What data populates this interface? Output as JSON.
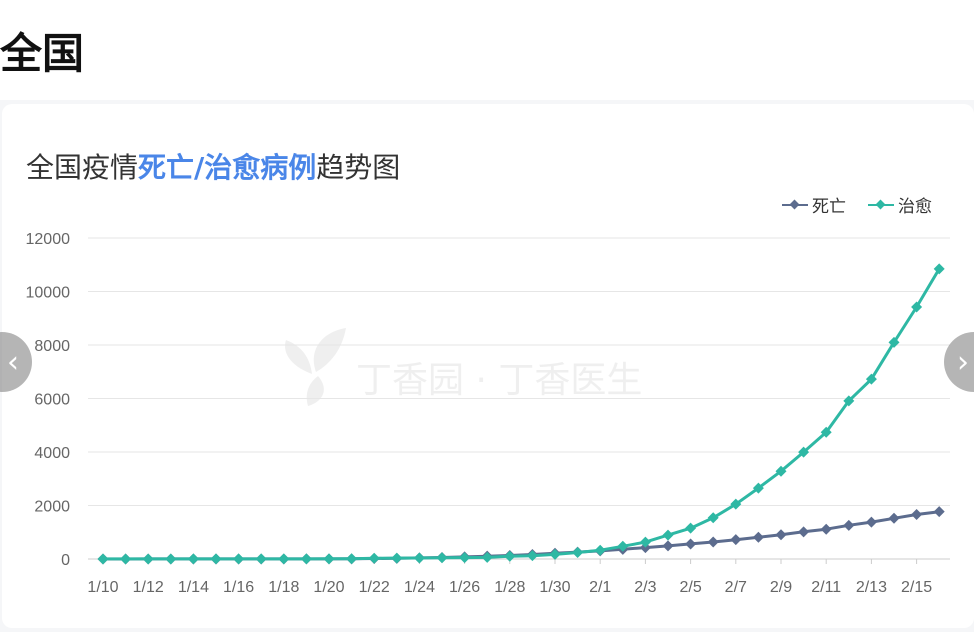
{
  "page": {
    "title": "全国"
  },
  "chart_card": {
    "title_prefix": "全国疫情",
    "title_highlight": "死亡/治愈病例",
    "title_suffix": "趋势图",
    "watermark": "丁香园 · 丁香医生"
  },
  "colors": {
    "death": "#5c6c8e",
    "cured": "#2eb8a4",
    "highlight": "#4a86e8"
  },
  "icons": {
    "prev": "chevron-left-icon",
    "next": "chevron-right-icon",
    "watermark_logo": "dxy-leaf-logo"
  },
  "chart_data": {
    "type": "line",
    "title": "全国疫情死亡/治愈病例趋势图",
    "categories": [
      "1/10",
      "1/11",
      "1/12",
      "1/13",
      "1/14",
      "1/15",
      "1/16",
      "1/17",
      "1/18",
      "1/19",
      "1/20",
      "1/21",
      "1/22",
      "1/23",
      "1/24",
      "1/25",
      "1/26",
      "1/27",
      "1/28",
      "1/29",
      "1/30",
      "1/31",
      "2/1",
      "2/2",
      "2/3",
      "2/4",
      "2/5",
      "2/6",
      "2/7",
      "2/8",
      "2/9",
      "2/10",
      "2/11",
      "2/12",
      "2/13",
      "2/14",
      "2/15",
      "2/16"
    ],
    "tick_labels": [
      "1/10",
      "1/12",
      "1/14",
      "1/16",
      "1/18",
      "1/20",
      "1/22",
      "1/24",
      "1/26",
      "1/28",
      "1/30",
      "2/1",
      "2/3",
      "2/5",
      "2/7",
      "2/9",
      "2/11",
      "2/13",
      "2/15"
    ],
    "series": [
      {
        "name": "死亡",
        "color": "#5c6c8e",
        "values": [
          1,
          1,
          2,
          2,
          2,
          2,
          2,
          2,
          2,
          3,
          4,
          6,
          17,
          25,
          41,
          56,
          80,
          106,
          132,
          170,
          213,
          259,
          304,
          361,
          425,
          490,
          563,
          636,
          722,
          811,
          908,
          1016,
          1113,
          1259,
          1380,
          1523,
          1665,
          1770
        ]
      },
      {
        "name": "治愈",
        "color": "#2eb8a4",
        "values": [
          2,
          2,
          2,
          2,
          3,
          3,
          3,
          4,
          5,
          5,
          6,
          9,
          28,
          34,
          38,
          49,
          51,
          60,
          103,
          124,
          171,
          243,
          328,
          475,
          632,
          892,
          1153,
          1540,
          2050,
          2649,
          3281,
          3996,
          4740,
          5911,
          6723,
          8096,
          9419,
          10844
        ]
      }
    ],
    "yticks": [
      0,
      2000,
      4000,
      6000,
      8000,
      10000,
      12000
    ],
    "ylim": [
      0,
      12000
    ],
    "grid": true,
    "legend": "top-right"
  }
}
